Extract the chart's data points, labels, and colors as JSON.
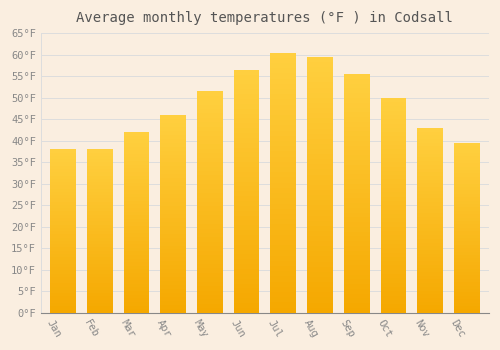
{
  "title": "Average monthly temperatures (°F ) in Codsall",
  "months": [
    "Jan",
    "Feb",
    "Mar",
    "Apr",
    "May",
    "Jun",
    "Jul",
    "Aug",
    "Sep",
    "Oct",
    "Nov",
    "Dec"
  ],
  "values": [
    38,
    38,
    42,
    46,
    51.5,
    56.5,
    60.5,
    59.5,
    55.5,
    50,
    43,
    39.5
  ],
  "bar_color_top": "#FFD040",
  "bar_color_bottom": "#F5A800",
  "background_color": "#FAEEE0",
  "plot_bg_color": "#FAEEE0",
  "grid_color": "#DDDDDD",
  "ylim": [
    0,
    65
  ],
  "yticks": [
    0,
    5,
    10,
    15,
    20,
    25,
    30,
    35,
    40,
    45,
    50,
    55,
    60,
    65
  ],
  "tick_label_color": "#888888",
  "title_color": "#555555",
  "title_fontsize": 10,
  "tick_fontsize": 7.5,
  "font_family": "monospace"
}
